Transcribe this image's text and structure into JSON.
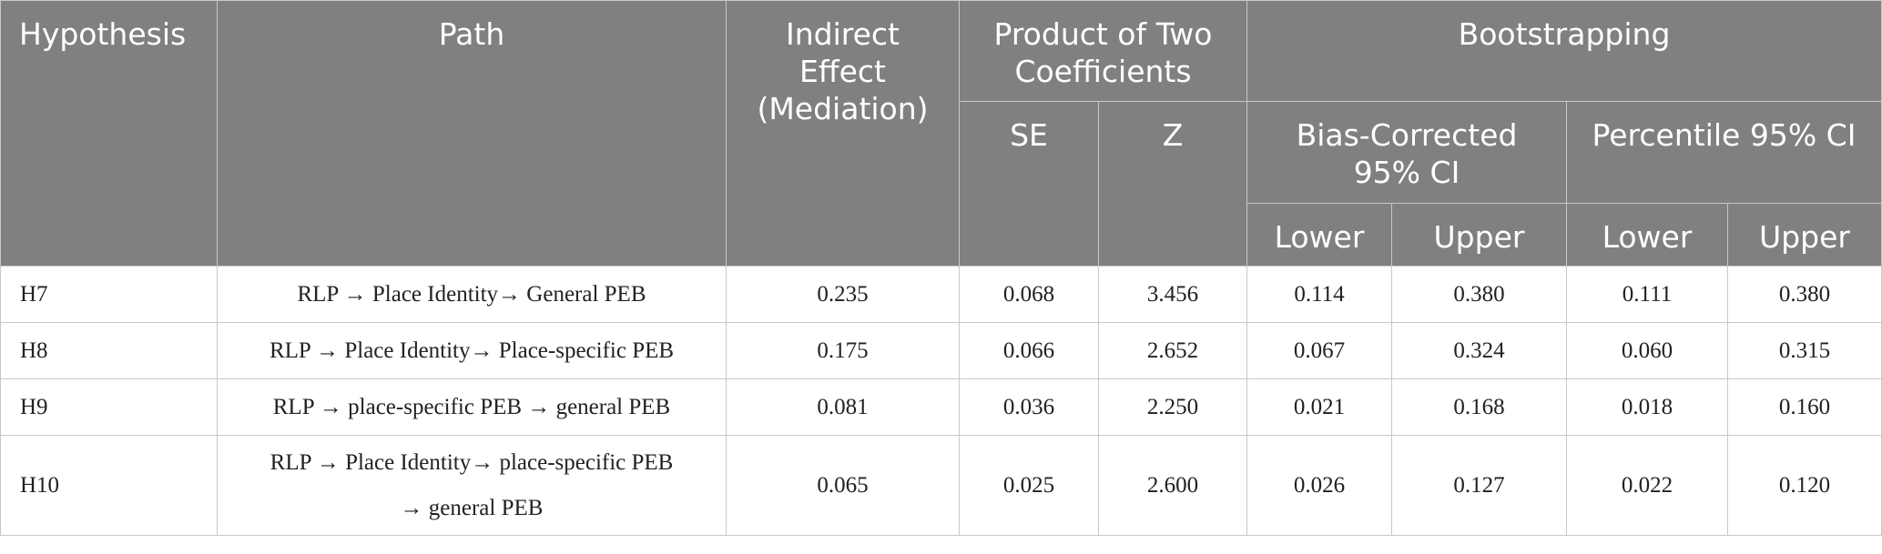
{
  "table": {
    "headers": {
      "hypothesis": "Hypothesis",
      "path": "Path",
      "indirect_effect": "Indirect Effect (Mediation)",
      "product": "Product of Two Coefficients",
      "bootstrapping": "Bootstrapping",
      "se": "SE",
      "z": "Z",
      "bias_corrected": "Bias-Corrected 95% CI",
      "percentile": "Percentile 95% CI",
      "lower_bc": "Lower",
      "upper_bc": "Upper",
      "lower_pc": "Lower",
      "upper_pc": "Upper"
    },
    "rows": [
      {
        "hypothesis": "H7",
        "path": "RLP → Place Identity→ General PEB",
        "indirect_effect": "0.235",
        "se": "0.068",
        "z": "3.456",
        "bc_lower": "0.114",
        "bc_upper": "0.380",
        "pc_lower": "0.111",
        "pc_upper": "0.380"
      },
      {
        "hypothesis": "H8",
        "path": "RLP → Place Identity→ Place-specific PEB",
        "indirect_effect": "0.175",
        "se": "0.066",
        "z": "2.652",
        "bc_lower": "0.067",
        "bc_upper": "0.324",
        "pc_lower": "0.060",
        "pc_upper": "0.315"
      },
      {
        "hypothesis": "H9",
        "path": "RLP → place-specific PEB → general PEB",
        "indirect_effect": "0.081",
        "se": "0.036",
        "z": "2.250",
        "bc_lower": "0.021",
        "bc_upper": "0.168",
        "pc_lower": "0.018",
        "pc_upper": "0.160"
      },
      {
        "hypothesis": "H10",
        "path": "RLP → Place Identity→ place-specific PEB → general PEB",
        "indirect_effect": "0.065",
        "se": "0.025",
        "z": "2.600",
        "bc_lower": "0.026",
        "bc_upper": "0.127",
        "pc_lower": "0.022",
        "pc_upper": "0.120"
      }
    ]
  }
}
